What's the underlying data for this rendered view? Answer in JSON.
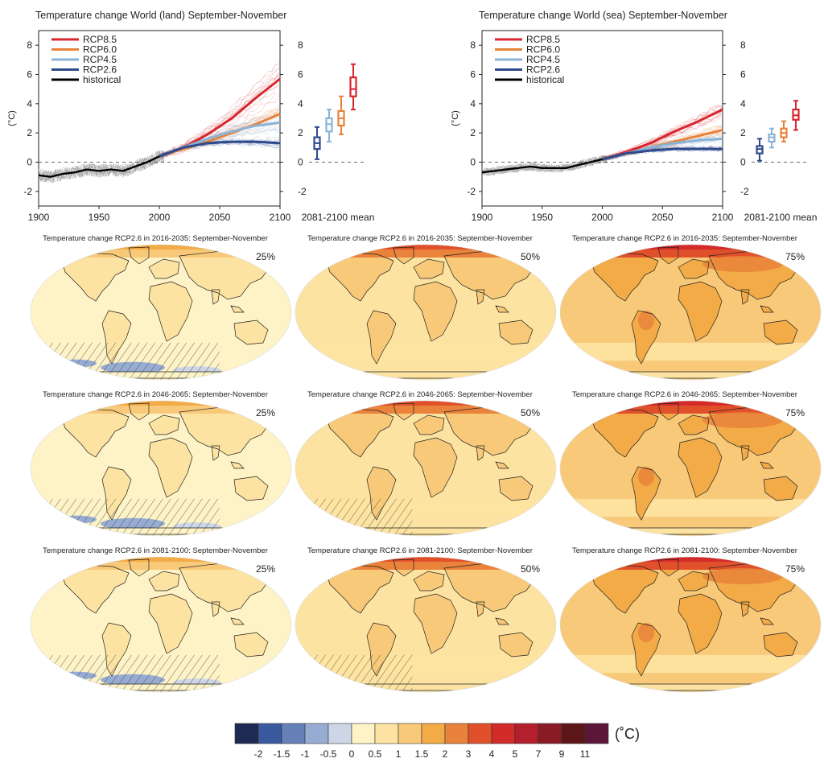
{
  "timeseries": [
    {
      "title": "Temperature change World (land) September-November",
      "ylabel": "(°C)",
      "box_xlabel": "2081-2100 mean",
      "chart_data": {
        "type": "line",
        "xlim": [
          1900,
          2100
        ],
        "ylim": [
          -3,
          9
        ],
        "x_ticks": [
          1900,
          1950,
          2000,
          2050,
          2100
        ],
        "y_ticks": [
          -2,
          0,
          2,
          4,
          6,
          8
        ],
        "series": [
          {
            "name": "RCP8.5",
            "color": "#d7262d",
            "x": [
              2000,
              2020,
              2040,
              2060,
              2080,
              2100
            ],
            "y": [
              0.4,
              1.0,
              1.9,
              3.0,
              4.4,
              5.7
            ]
          },
          {
            "name": "RCP6.0",
            "color": "#e8823a",
            "x": [
              2000,
              2020,
              2040,
              2060,
              2080,
              2100
            ],
            "y": [
              0.4,
              0.9,
              1.4,
              2.0,
              2.6,
              3.3
            ]
          },
          {
            "name": "RCP4.5",
            "color": "#8ab3d8",
            "x": [
              2000,
              2020,
              2040,
              2060,
              2080,
              2100
            ],
            "y": [
              0.4,
              1.0,
              1.6,
              2.1,
              2.5,
              2.7
            ]
          },
          {
            "name": "RCP2.6",
            "color": "#2e4a8c",
            "x": [
              2000,
              2020,
              2040,
              2060,
              2080,
              2100
            ],
            "y": [
              0.4,
              1.0,
              1.3,
              1.4,
              1.4,
              1.3
            ]
          },
          {
            "name": "historical",
            "color": "#000000",
            "x": [
              1900,
              1910,
              1920,
              1930,
              1940,
              1950,
              1960,
              1970,
              1980,
              1990,
              2000
            ],
            "y": [
              -0.9,
              -1.0,
              -0.8,
              -0.7,
              -0.5,
              -0.6,
              -0.5,
              -0.6,
              -0.3,
              0.0,
              0.4
            ]
          }
        ],
        "boxes": [
          {
            "name": "RCP2.6",
            "color": "#2e4a8c",
            "min": 0.2,
            "q1": 0.9,
            "median": 1.3,
            "q3": 1.7,
            "max": 2.4
          },
          {
            "name": "RCP4.5",
            "color": "#8ab3d8",
            "min": 1.4,
            "q1": 2.1,
            "median": 2.6,
            "q3": 3.0,
            "max": 3.6
          },
          {
            "name": "RCP6.0",
            "color": "#e8823a",
            "min": 1.9,
            "q1": 2.5,
            "median": 3.0,
            "q3": 3.5,
            "max": 4.5
          },
          {
            "name": "RCP8.5",
            "color": "#d7262d",
            "min": 3.6,
            "q1": 4.5,
            "median": 5.0,
            "q3": 5.8,
            "max": 6.7
          }
        ]
      }
    },
    {
      "title": "Temperature change World (sea) September-November",
      "ylabel": "(°C)",
      "box_xlabel": "2081-2100 mean",
      "chart_data": {
        "type": "line",
        "xlim": [
          1900,
          2100
        ],
        "ylim": [
          -3,
          9
        ],
        "x_ticks": [
          1900,
          1950,
          2000,
          2050,
          2100
        ],
        "y_ticks": [
          -2,
          0,
          2,
          4,
          6,
          8
        ],
        "series": [
          {
            "name": "RCP8.5",
            "color": "#d7262d",
            "x": [
              2000,
              2020,
              2040,
              2060,
              2080,
              2100
            ],
            "y": [
              0.2,
              0.7,
              1.3,
              2.1,
              2.8,
              3.6
            ]
          },
          {
            "name": "RCP6.0",
            "color": "#e8823a",
            "x": [
              2000,
              2020,
              2040,
              2060,
              2080,
              2100
            ],
            "y": [
              0.2,
              0.6,
              1.0,
              1.4,
              1.8,
              2.2
            ]
          },
          {
            "name": "RCP4.5",
            "color": "#8ab3d8",
            "x": [
              2000,
              2020,
              2040,
              2060,
              2080,
              2100
            ],
            "y": [
              0.2,
              0.6,
              1.0,
              1.3,
              1.5,
              1.6
            ]
          },
          {
            "name": "RCP2.6",
            "color": "#2e4a8c",
            "x": [
              2000,
              2020,
              2040,
              2060,
              2080,
              2100
            ],
            "y": [
              0.2,
              0.6,
              0.8,
              0.9,
              0.9,
              0.9
            ]
          },
          {
            "name": "historical",
            "color": "#000000",
            "x": [
              1900,
              1910,
              1920,
              1930,
              1940,
              1950,
              1960,
              1970,
              1980,
              1990,
              2000
            ],
            "y": [
              -0.7,
              -0.6,
              -0.5,
              -0.4,
              -0.3,
              -0.4,
              -0.4,
              -0.4,
              -0.2,
              0.0,
              0.2
            ]
          }
        ],
        "boxes": [
          {
            "name": "RCP2.6",
            "color": "#2e4a8c",
            "min": 0.1,
            "q1": 0.6,
            "median": 0.9,
            "q3": 1.1,
            "max": 1.6
          },
          {
            "name": "RCP4.5",
            "color": "#8ab3d8",
            "min": 1.0,
            "q1": 1.4,
            "median": 1.7,
            "q3": 1.9,
            "max": 2.3
          },
          {
            "name": "RCP6.0",
            "color": "#e8823a",
            "min": 1.4,
            "q1": 1.7,
            "median": 2.0,
            "q3": 2.3,
            "max": 2.8
          },
          {
            "name": "RCP8.5",
            "color": "#d7262d",
            "min": 2.2,
            "q1": 2.9,
            "median": 3.2,
            "q3": 3.6,
            "max": 4.2
          }
        ]
      }
    }
  ],
  "maps": [
    {
      "title": "Temperature change RCP2.6 in 2016-2035: September-November",
      "percentile": "25%",
      "level": 0,
      "hatch": "strong"
    },
    {
      "title": "Temperature change RCP2.6 in 2016-2035: September-November",
      "percentile": "50%",
      "level": 1,
      "hatch": "none"
    },
    {
      "title": "Temperature change RCP2.6 in 2016-2035: September-November",
      "percentile": "75%",
      "level": 2,
      "hatch": "none"
    },
    {
      "title": "Temperature change RCP2.6 in 2046-2065: September-November",
      "percentile": "25%",
      "level": 0,
      "hatch": "strong"
    },
    {
      "title": "Temperature change RCP2.6 in 2046-2065: September-November",
      "percentile": "50%",
      "level": 1,
      "hatch": "light"
    },
    {
      "title": "Temperature change RCP2.6 in 2046-2065: September-November",
      "percentile": "75%",
      "level": 2,
      "hatch": "none"
    },
    {
      "title": "Temperature change RCP2.6 in 2081-2100: September-November",
      "percentile": "25%",
      "level": 0,
      "hatch": "strong"
    },
    {
      "title": "Temperature change RCP2.6 in 2081-2100: September-November",
      "percentile": "50%",
      "level": 1,
      "hatch": "light"
    },
    {
      "title": "Temperature change RCP2.6 in 2081-2100: September-November",
      "percentile": "75%",
      "level": 2,
      "hatch": "none"
    }
  ],
  "colorbar": {
    "unit": "(˚C)",
    "colors": [
      "#1f2a52",
      "#3a5aa0",
      "#6680b8",
      "#97acd2",
      "#cdd6e6",
      "#fdf3c7",
      "#fde3a1",
      "#f8c979",
      "#f2ab46",
      "#e9823a",
      "#e0502b",
      "#d32a2a",
      "#b31f2c",
      "#8a1b24",
      "#5c1618",
      "#5b1639"
    ],
    "labels": [
      "-2",
      "-1.5",
      "-1",
      "-0.5",
      "0",
      "0.5",
      "1",
      "1.5",
      "2",
      "3",
      "4",
      "5",
      "7",
      "9",
      "11"
    ]
  }
}
